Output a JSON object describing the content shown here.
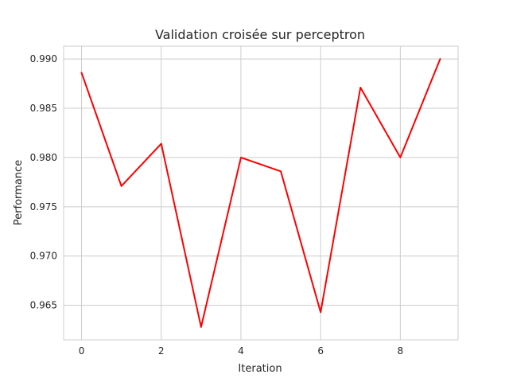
{
  "chart_data": {
    "type": "line",
    "title": "Validation croisée sur perceptron",
    "xlabel": "Iteration",
    "ylabel": "Performance",
    "x": [
      0,
      1,
      2,
      3,
      4,
      5,
      6,
      7,
      8,
      9
    ],
    "series": [
      {
        "values": [
          0.9886,
          0.9771,
          0.9814,
          0.9628,
          0.98,
          0.9786,
          0.9643,
          0.9871,
          0.98,
          0.99
        ],
        "color": "#ff0000"
      }
    ],
    "xlim": [
      -0.45,
      9.45
    ],
    "ylim": [
      0.9615,
      0.9913
    ],
    "xticks": [
      0,
      2,
      4,
      6,
      8
    ],
    "xtick_labels": [
      "0",
      "2",
      "4",
      "6",
      "8"
    ],
    "yticks": [
      0.965,
      0.97,
      0.975,
      0.98,
      0.985,
      0.99
    ],
    "ytick_labels": [
      "0.965",
      "0.970",
      "0.975",
      "0.980",
      "0.985",
      "0.990"
    ],
    "grid": true,
    "style": {
      "background": "#ffffff",
      "grid_color": "#cccccc",
      "spine_color": "#cccccc",
      "text_color": "#262626"
    }
  }
}
